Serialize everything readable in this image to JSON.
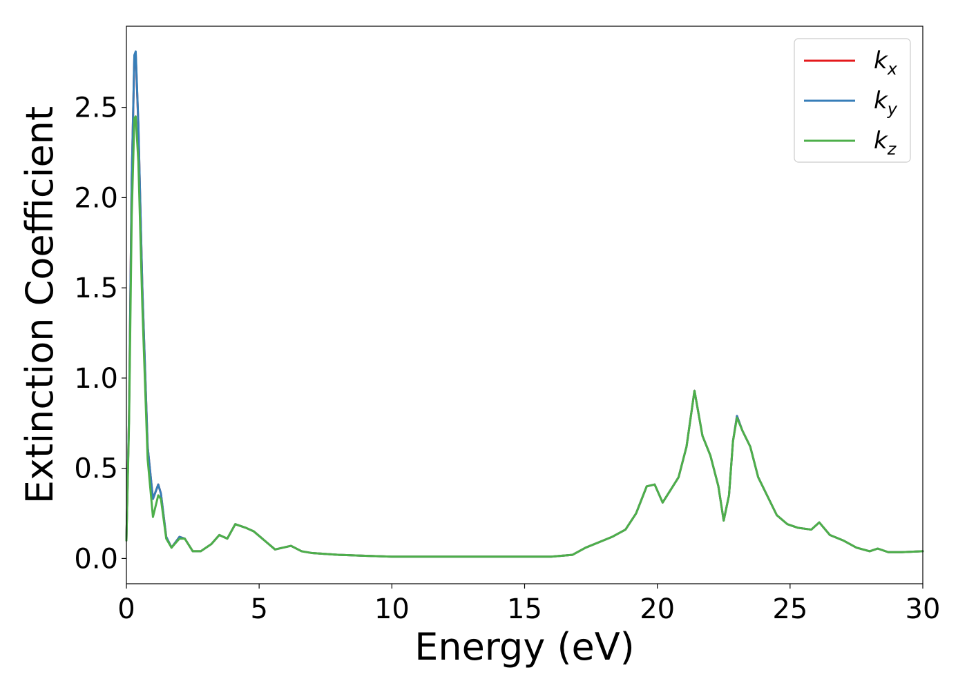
{
  "chart_data": {
    "type": "line",
    "title": "",
    "xlabel": "Energy (eV)",
    "ylabel": "Extinction Coefficient",
    "xlim": [
      0,
      30
    ],
    "ylim": [
      -0.14,
      2.95
    ],
    "xticks": [
      0,
      5,
      10,
      15,
      20,
      25,
      30
    ],
    "xtick_labels": [
      "0",
      "5",
      "10",
      "15",
      "20",
      "25",
      "30"
    ],
    "yticks": [
      0.0,
      0.5,
      1.0,
      1.5,
      2.0,
      2.5
    ],
    "ytick_labels": [
      "0.0",
      "0.5",
      "1.0",
      "1.5",
      "2.0",
      "2.5"
    ],
    "grid": false,
    "legend_position": "top-right",
    "series": [
      {
        "name": "k_x",
        "legend_base": "k",
        "legend_sub": "x",
        "color": "#e41a1c",
        "x": [
          0,
          0.1,
          0.2,
          0.3,
          0.35,
          0.45,
          0.6,
          0.8,
          1.0,
          1.2,
          1.3,
          1.5,
          1.7,
          2.0,
          2.2,
          2.5,
          2.8,
          3.2,
          3.5,
          3.8,
          4.1,
          4.5,
          4.8,
          5.2,
          5.6,
          6.2,
          6.6,
          7.0,
          8.0,
          9.0,
          10,
          12,
          14,
          16,
          16.8,
          17.3,
          17.8,
          18.3,
          18.8,
          19.2,
          19.6,
          19.9,
          20.2,
          20.5,
          20.8,
          21.1,
          21.4,
          21.7,
          22.0,
          22.3,
          22.5,
          22.7,
          22.85,
          23.0,
          23.2,
          23.5,
          23.8,
          24.1,
          24.5,
          24.9,
          25.3,
          25.8,
          26.1,
          26.5,
          27.0,
          27.5,
          28.0,
          28.3,
          28.7,
          29.2,
          30.0
        ],
        "values": [
          0.1,
          0.8,
          2.1,
          2.78,
          2.8,
          2.4,
          1.5,
          0.62,
          0.33,
          0.41,
          0.36,
          0.12,
          0.06,
          0.12,
          0.11,
          0.04,
          0.04,
          0.08,
          0.13,
          0.11,
          0.19,
          0.17,
          0.15,
          0.1,
          0.05,
          0.07,
          0.04,
          0.03,
          0.02,
          0.015,
          0.01,
          0.01,
          0.01,
          0.01,
          0.02,
          0.06,
          0.09,
          0.12,
          0.16,
          0.25,
          0.4,
          0.41,
          0.31,
          0.38,
          0.45,
          0.62,
          0.93,
          0.68,
          0.57,
          0.4,
          0.21,
          0.35,
          0.65,
          0.79,
          0.71,
          0.62,
          0.45,
          0.36,
          0.24,
          0.19,
          0.17,
          0.16,
          0.2,
          0.13,
          0.1,
          0.06,
          0.04,
          0.055,
          0.035,
          0.035,
          0.04
        ]
      },
      {
        "name": "k_y",
        "legend_base": "k",
        "legend_sub": "y",
        "color": "#377eb8",
        "x": [
          0,
          0.1,
          0.2,
          0.3,
          0.35,
          0.45,
          0.6,
          0.8,
          1.0,
          1.2,
          1.3,
          1.5,
          1.7,
          2.0,
          2.2,
          2.5,
          2.8,
          3.2,
          3.5,
          3.8,
          4.1,
          4.5,
          4.8,
          5.2,
          5.6,
          6.2,
          6.6,
          7.0,
          8.0,
          9.0,
          10,
          12,
          14,
          16,
          16.8,
          17.3,
          17.8,
          18.3,
          18.8,
          19.2,
          19.6,
          19.9,
          20.2,
          20.5,
          20.8,
          21.1,
          21.4,
          21.7,
          22.0,
          22.3,
          22.5,
          22.7,
          22.85,
          23.0,
          23.2,
          23.5,
          23.8,
          24.1,
          24.5,
          24.9,
          25.3,
          25.8,
          26.1,
          26.5,
          27.0,
          27.5,
          28.0,
          28.3,
          28.7,
          29.2,
          30.0
        ],
        "values": [
          0.1,
          0.8,
          2.1,
          2.79,
          2.81,
          2.41,
          1.5,
          0.62,
          0.33,
          0.41,
          0.36,
          0.12,
          0.06,
          0.12,
          0.11,
          0.04,
          0.04,
          0.08,
          0.13,
          0.11,
          0.19,
          0.17,
          0.15,
          0.1,
          0.05,
          0.07,
          0.04,
          0.03,
          0.02,
          0.015,
          0.01,
          0.01,
          0.01,
          0.01,
          0.02,
          0.06,
          0.09,
          0.12,
          0.16,
          0.25,
          0.4,
          0.41,
          0.31,
          0.38,
          0.45,
          0.62,
          0.93,
          0.68,
          0.57,
          0.4,
          0.21,
          0.35,
          0.65,
          0.79,
          0.71,
          0.62,
          0.45,
          0.36,
          0.24,
          0.19,
          0.17,
          0.16,
          0.2,
          0.13,
          0.1,
          0.06,
          0.04,
          0.055,
          0.035,
          0.035,
          0.04
        ]
      },
      {
        "name": "k_z",
        "legend_base": "k",
        "legend_sub": "z",
        "color": "#4daf4a",
        "x": [
          0,
          0.1,
          0.2,
          0.3,
          0.35,
          0.45,
          0.6,
          0.8,
          1.0,
          1.2,
          1.3,
          1.5,
          1.7,
          2.0,
          2.2,
          2.5,
          2.8,
          3.2,
          3.5,
          3.8,
          4.1,
          4.5,
          4.8,
          5.2,
          5.6,
          6.2,
          6.6,
          7.0,
          8.0,
          9.0,
          10,
          12,
          14,
          16,
          16.8,
          17.3,
          17.8,
          18.3,
          18.8,
          19.2,
          19.6,
          19.9,
          20.2,
          20.5,
          20.8,
          21.1,
          21.4,
          21.7,
          22.0,
          22.3,
          22.5,
          22.7,
          22.85,
          23.0,
          23.2,
          23.5,
          23.8,
          24.1,
          24.5,
          24.9,
          25.3,
          25.8,
          26.1,
          26.5,
          27.0,
          27.5,
          28.0,
          28.3,
          28.7,
          29.2,
          30.0
        ],
        "values": [
          0.1,
          0.75,
          1.9,
          2.44,
          2.45,
          2.2,
          1.4,
          0.55,
          0.23,
          0.35,
          0.33,
          0.11,
          0.06,
          0.11,
          0.11,
          0.04,
          0.04,
          0.08,
          0.13,
          0.11,
          0.19,
          0.17,
          0.15,
          0.1,
          0.05,
          0.07,
          0.04,
          0.03,
          0.02,
          0.015,
          0.01,
          0.01,
          0.01,
          0.01,
          0.02,
          0.06,
          0.09,
          0.12,
          0.16,
          0.25,
          0.4,
          0.41,
          0.31,
          0.38,
          0.45,
          0.62,
          0.93,
          0.68,
          0.57,
          0.4,
          0.21,
          0.35,
          0.65,
          0.78,
          0.71,
          0.62,
          0.45,
          0.36,
          0.24,
          0.19,
          0.17,
          0.16,
          0.2,
          0.13,
          0.1,
          0.06,
          0.04,
          0.055,
          0.035,
          0.035,
          0.04
        ]
      }
    ]
  }
}
